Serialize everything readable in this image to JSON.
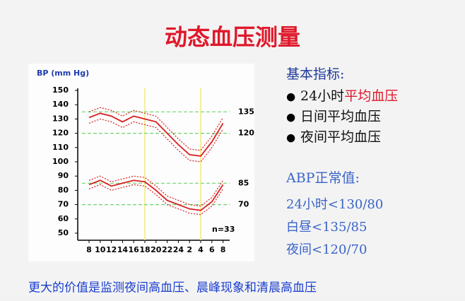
{
  "title": "动态血压测量",
  "chart_data": {
    "type": "line",
    "y_label": "BP (mm Hg)",
    "categories": [
      "8",
      "10",
      "12",
      "14",
      "16",
      "18",
      "20",
      "22",
      "24",
      "2",
      "4",
      "6",
      "8"
    ],
    "series": [
      {
        "color": "#d81e1e",
        "dotted": true,
        "values": [
          135,
          138,
          136,
          132,
          136,
          134,
          132,
          124,
          116,
          109,
          108,
          118,
          131
        ]
      },
      {
        "color": "#d81e1e",
        "dotted": false,
        "values": [
          131,
          134,
          132,
          128,
          132,
          130,
          128,
          120,
          112,
          105,
          104,
          114,
          127
        ]
      },
      {
        "color": "#d81e1e",
        "dotted": true,
        "values": [
          127,
          130,
          128,
          124,
          128,
          126,
          124,
          116,
          108,
          101,
          100,
          110,
          123
        ]
      },
      {
        "color": "#d81e1e",
        "dotted": true,
        "values": [
          87,
          90,
          86,
          88,
          90,
          89,
          83,
          76,
          73,
          70,
          69,
          75,
          87
        ]
      },
      {
        "color": "#d81e1e",
        "dotted": false,
        "values": [
          84,
          87,
          83,
          85,
          87,
          86,
          80,
          73,
          70,
          67,
          66,
          72,
          84
        ]
      },
      {
        "color": "#d81e1e",
        "dotted": true,
        "values": [
          81,
          84,
          80,
          82,
          84,
          83,
          77,
          70,
          67,
          64,
          63,
          69,
          81
        ]
      }
    ],
    "ylim": [
      50,
      150
    ],
    "yticks": [
      50,
      60,
      70,
      80,
      90,
      100,
      110,
      120,
      130,
      140,
      150
    ],
    "reference_lines": [
      135,
      120,
      85,
      70
    ],
    "reference_color": "#6fd36f",
    "highlight_categories": [
      "18",
      "4"
    ],
    "highlight_color": "#f3ea7a",
    "annotation": "n=33"
  },
  "indicators": {
    "heading": "基本指标:",
    "bullet": "●",
    "items": [
      [
        "24小时",
        "平均血压"
      ],
      [
        "日间平均血压"
      ],
      [
        "夜间平均血压"
      ]
    ]
  },
  "normal": {
    "heading": "ABP正常值:",
    "items": [
      "24小时<130/80",
      "白昼<135/85",
      "夜间<120/70"
    ]
  },
  "footer": "更大的价值是监测夜间高血压、晨峰现象和清晨高血压"
}
